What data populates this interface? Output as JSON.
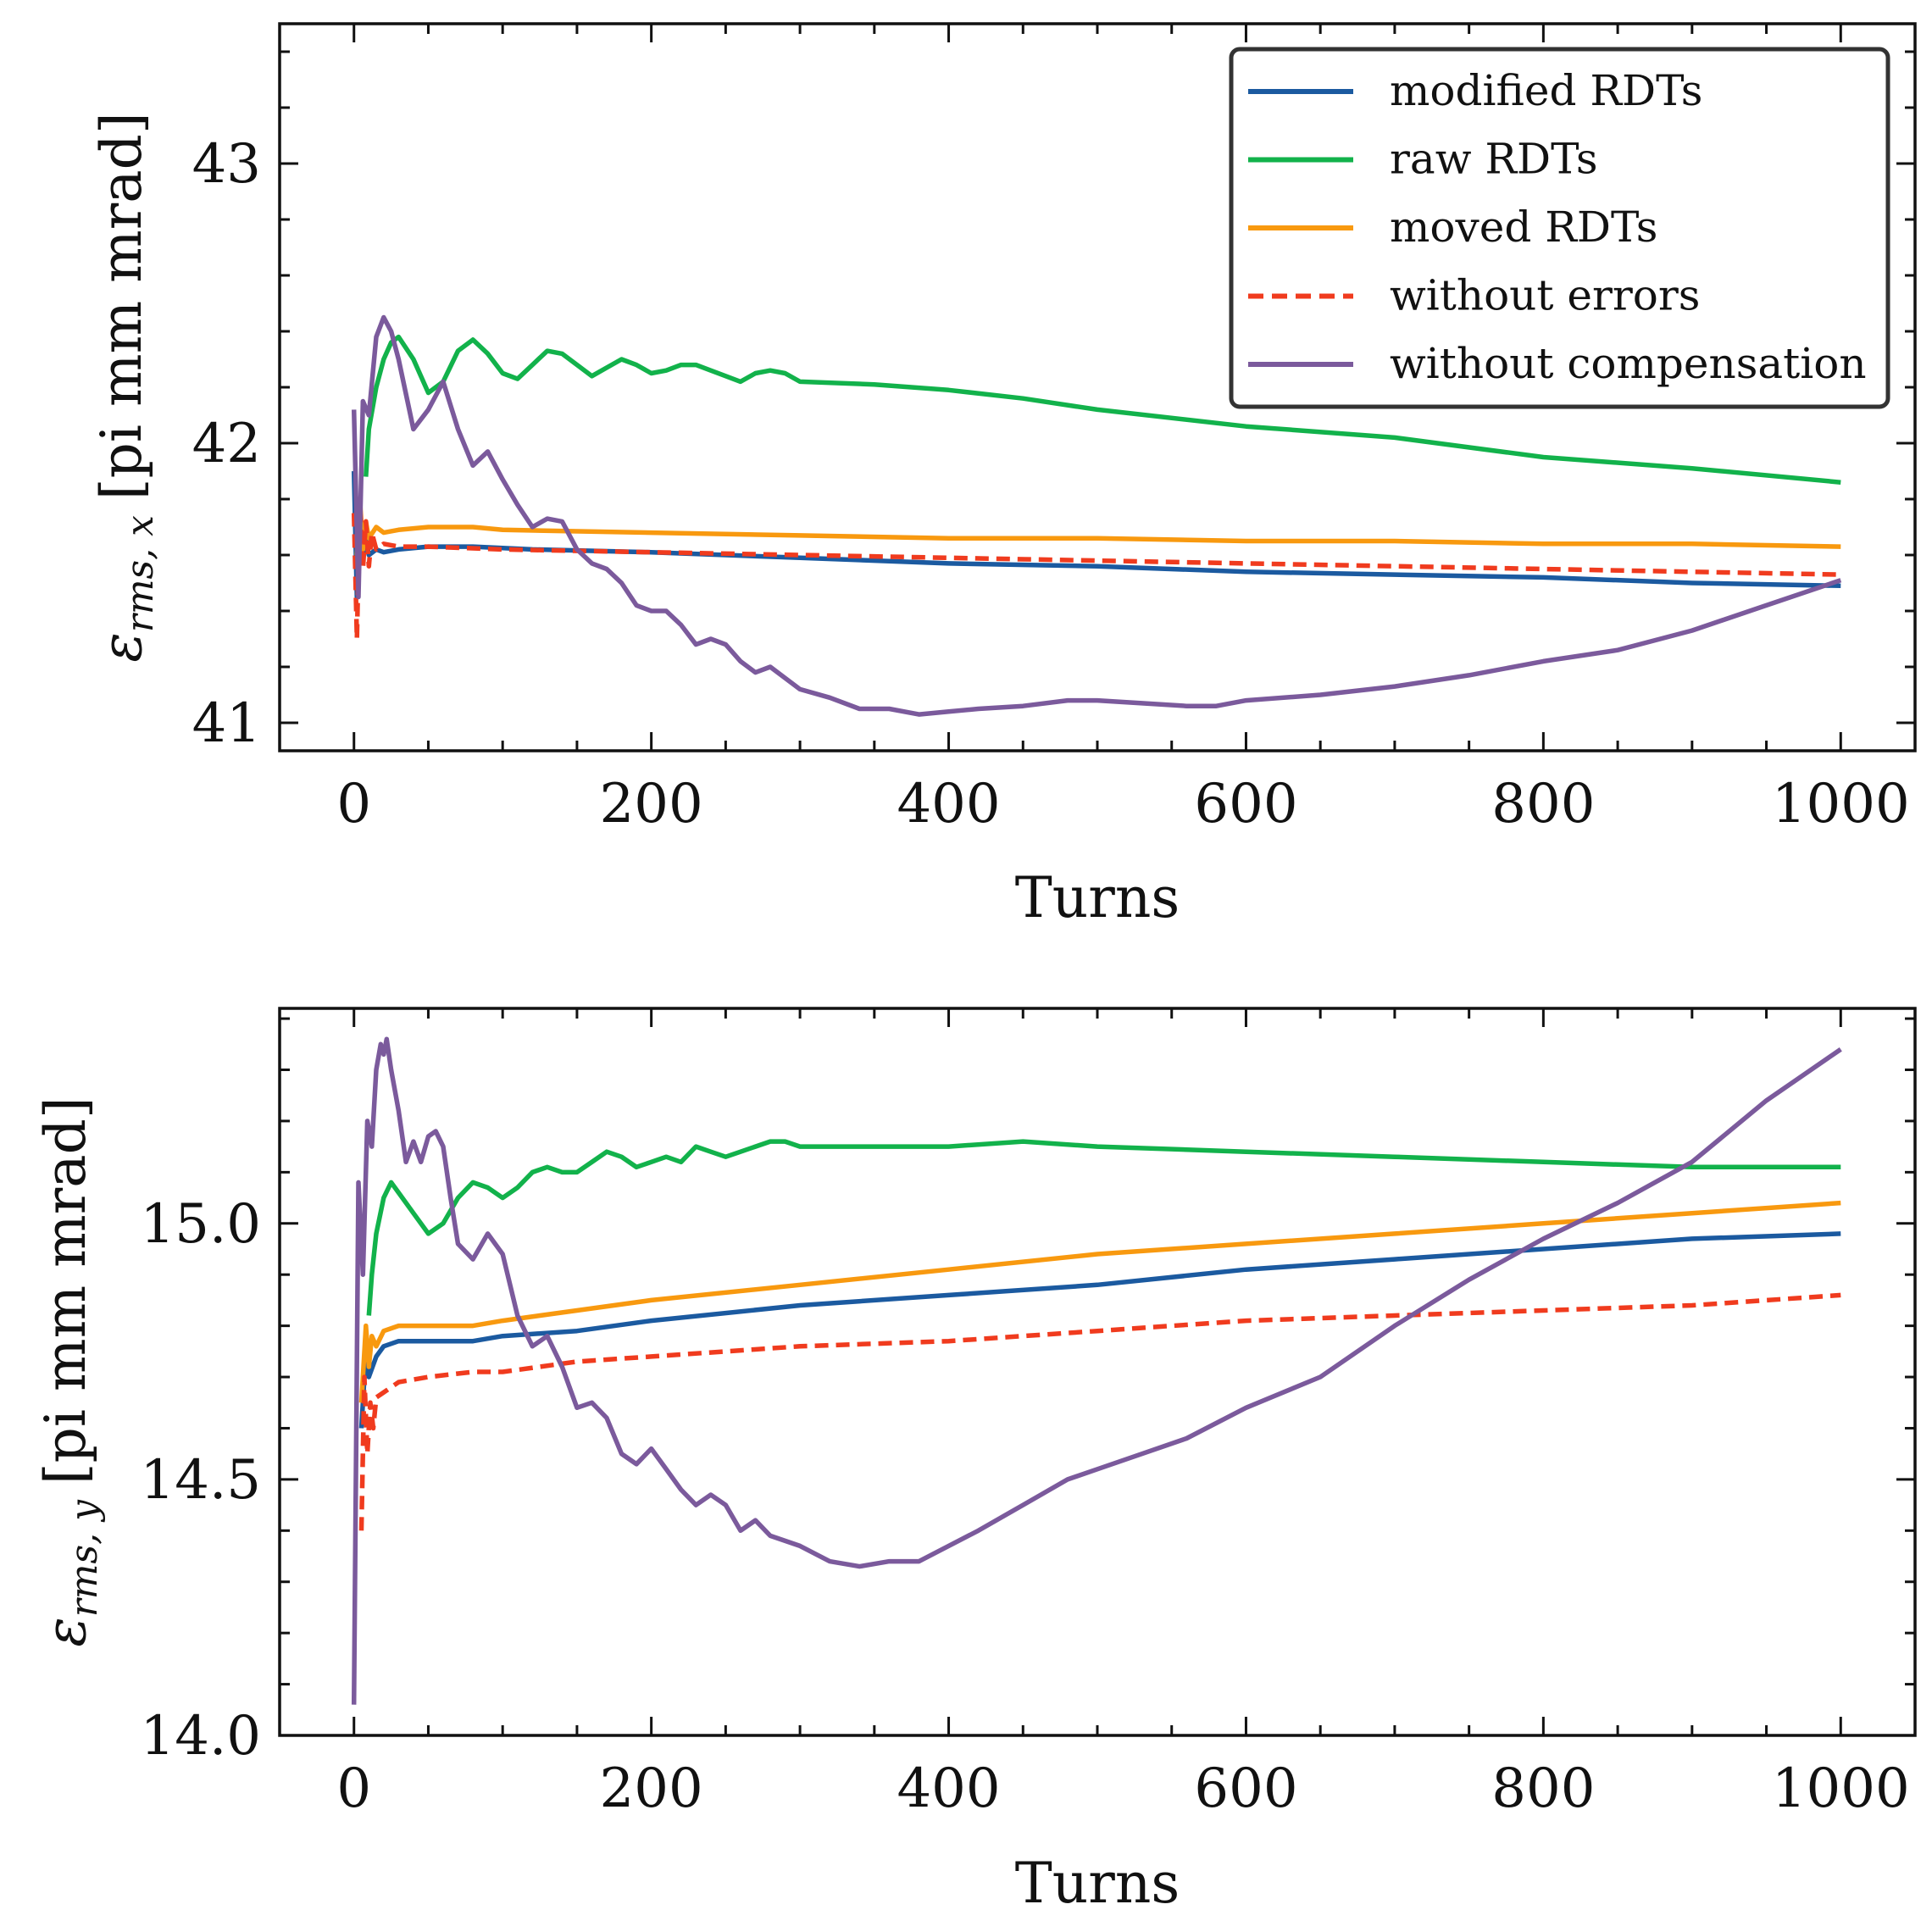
{
  "figure": {
    "description_panels": 2
  },
  "legend": {
    "entries": [
      {
        "label": "modified RDTs",
        "color": "#1b5aa0",
        "dash": "solid"
      },
      {
        "label": "raw RDTs",
        "color": "#12b24b",
        "dash": "solid"
      },
      {
        "label": "moved RDTs",
        "color": "#f8990f",
        "dash": "solid"
      },
      {
        "label": "without errors",
        "color": "#f03b1e",
        "dash": "dashed"
      },
      {
        "label": "without compensation",
        "color": "#7b5a9c",
        "dash": "solid"
      }
    ]
  },
  "chart_data": [
    {
      "type": "line",
      "title": "",
      "xlabel": "Turns",
      "ylabel": "εrms, x [pi mm mrad]",
      "ylabel_symbol": "ε",
      "ylabel_subscript": "rms, x",
      "ylabel_units": "[pi mm mrad]",
      "xlim": [
        -50,
        1050
      ],
      "ylim": [
        40.9,
        43.5
      ],
      "xticks": [
        0,
        200,
        400,
        600,
        800,
        1000
      ],
      "xtick_labels": [
        "0",
        "200",
        "400",
        "600",
        "800",
        "1000"
      ],
      "yticks": [
        41,
        42,
        43
      ],
      "ytick_labels": [
        "41",
        "42",
        "43"
      ],
      "legend_position": "top-right",
      "series": [
        {
          "name": "modified RDTs",
          "color": "#1b5aa0",
          "dash": "solid",
          "x": [
            0,
            2,
            4,
            6,
            8,
            10,
            15,
            20,
            30,
            50,
            80,
            120,
            200,
            300,
            400,
            500,
            600,
            700,
            800,
            900,
            1000
          ],
          "y": [
            41.9,
            41.45,
            41.7,
            41.58,
            41.66,
            41.6,
            41.62,
            41.61,
            41.62,
            41.63,
            41.63,
            41.62,
            41.61,
            41.59,
            41.57,
            41.56,
            41.54,
            41.53,
            41.52,
            41.5,
            41.49
          ]
        },
        {
          "name": "raw RDTs",
          "color": "#12b24b",
          "dash": "solid",
          "x": [
            8,
            10,
            15,
            20,
            25,
            30,
            40,
            50,
            60,
            70,
            80,
            90,
            100,
            110,
            120,
            130,
            140,
            150,
            160,
            170,
            180,
            190,
            200,
            210,
            220,
            230,
            240,
            250,
            260,
            270,
            280,
            290,
            300,
            350,
            400,
            450,
            500,
            600,
            700,
            800,
            900,
            1000
          ],
          "y": [
            41.88,
            42.05,
            42.2,
            42.3,
            42.36,
            42.38,
            42.3,
            42.18,
            42.22,
            42.33,
            42.37,
            42.32,
            42.25,
            42.23,
            42.28,
            42.33,
            42.32,
            42.28,
            42.24,
            42.27,
            42.3,
            42.28,
            42.25,
            42.26,
            42.28,
            42.28,
            42.26,
            42.24,
            42.22,
            42.25,
            42.26,
            42.25,
            42.22,
            42.21,
            42.19,
            42.16,
            42.12,
            42.06,
            42.02,
            41.95,
            41.91,
            41.86
          ]
        },
        {
          "name": "moved RDTs",
          "color": "#f8990f",
          "dash": "solid",
          "x": [
            2,
            4,
            6,
            8,
            10,
            15,
            20,
            30,
            50,
            80,
            100,
            200,
            300,
            400,
            500,
            600,
            700,
            800,
            900,
            1000
          ],
          "y": [
            41.6,
            41.8,
            41.62,
            41.72,
            41.66,
            41.7,
            41.68,
            41.69,
            41.7,
            41.7,
            41.69,
            41.68,
            41.67,
            41.66,
            41.66,
            41.65,
            41.65,
            41.64,
            41.64,
            41.63
          ]
        },
        {
          "name": "without errors",
          "color": "#f03b1e",
          "dash": "dashed",
          "x": [
            0,
            2,
            4,
            6,
            8,
            10,
            12,
            15,
            20,
            30,
            50,
            100,
            200,
            300,
            400,
            500,
            600,
            700,
            800,
            900,
            1000
          ],
          "y": [
            41.75,
            41.3,
            41.8,
            41.55,
            41.72,
            41.56,
            41.68,
            41.62,
            41.64,
            41.63,
            41.63,
            41.62,
            41.61,
            41.6,
            41.59,
            41.58,
            41.57,
            41.56,
            41.55,
            41.54,
            41.53
          ]
        },
        {
          "name": "without compensation",
          "color": "#7b5a9c",
          "dash": "solid",
          "x": [
            0,
            3,
            6,
            10,
            15,
            20,
            25,
            30,
            40,
            50,
            60,
            70,
            80,
            90,
            100,
            110,
            120,
            130,
            140,
            150,
            160,
            170,
            180,
            190,
            200,
            210,
            220,
            230,
            240,
            250,
            260,
            270,
            280,
            290,
            300,
            320,
            340,
            360,
            380,
            400,
            420,
            450,
            480,
            500,
            530,
            560,
            580,
            600,
            650,
            700,
            750,
            800,
            850,
            900,
            950,
            1000
          ],
          "y": [
            42.12,
            41.45,
            42.15,
            42.1,
            42.38,
            42.45,
            42.4,
            42.3,
            42.05,
            42.12,
            42.22,
            42.05,
            41.92,
            41.97,
            41.87,
            41.78,
            41.7,
            41.73,
            41.72,
            41.62,
            41.57,
            41.55,
            41.5,
            41.42,
            41.4,
            41.4,
            41.35,
            41.28,
            41.3,
            41.28,
            41.22,
            41.18,
            41.2,
            41.16,
            41.12,
            41.09,
            41.05,
            41.05,
            41.03,
            41.04,
            41.05,
            41.06,
            41.08,
            41.08,
            41.07,
            41.06,
            41.06,
            41.08,
            41.1,
            41.13,
            41.17,
            41.22,
            41.26,
            41.33,
            41.42,
            41.51
          ]
        }
      ]
    },
    {
      "type": "line",
      "title": "",
      "xlabel": "Turns",
      "ylabel": "εrms, y [pi mm mrad]",
      "ylabel_symbol": "ε",
      "ylabel_subscript": "rms, y",
      "ylabel_units": "[pi mm mrad]",
      "xlim": [
        -50,
        1050
      ],
      "ylim": [
        14.0,
        15.42
      ],
      "xticks": [
        0,
        200,
        400,
        600,
        800,
        1000
      ],
      "xtick_labels": [
        "0",
        "200",
        "400",
        "600",
        "800",
        "1000"
      ],
      "yticks": [
        14.0,
        14.5,
        15.0
      ],
      "ytick_labels": [
        "14.0",
        "14.5",
        "15.0"
      ],
      "series": [
        {
          "name": "modified RDTs",
          "color": "#1b5aa0",
          "dash": "solid",
          "x": [
            5,
            8,
            10,
            15,
            20,
            30,
            50,
            80,
            100,
            150,
            200,
            300,
            400,
            500,
            600,
            700,
            800,
            900,
            1000
          ],
          "y": [
            14.6,
            14.75,
            14.7,
            14.74,
            14.76,
            14.77,
            14.77,
            14.77,
            14.78,
            14.79,
            14.81,
            14.84,
            14.86,
            14.88,
            14.91,
            14.93,
            14.95,
            14.97,
            14.98
          ]
        },
        {
          "name": "raw RDTs",
          "color": "#12b24b",
          "dash": "solid",
          "x": [
            10,
            12,
            15,
            20,
            25,
            30,
            40,
            50,
            60,
            70,
            80,
            90,
            100,
            110,
            120,
            130,
            140,
            150,
            160,
            170,
            180,
            190,
            200,
            210,
            220,
            230,
            240,
            250,
            260,
            270,
            280,
            290,
            300,
            350,
            400,
            450,
            500,
            600,
            700,
            800,
            900,
            1000
          ],
          "y": [
            14.82,
            14.9,
            14.98,
            15.05,
            15.08,
            15.06,
            15.02,
            14.98,
            15.0,
            15.05,
            15.08,
            15.07,
            15.05,
            15.07,
            15.1,
            15.11,
            15.1,
            15.1,
            15.12,
            15.14,
            15.13,
            15.11,
            15.12,
            15.13,
            15.12,
            15.15,
            15.14,
            15.13,
            15.14,
            15.15,
            15.16,
            15.16,
            15.15,
            15.15,
            15.15,
            15.16,
            15.15,
            15.14,
            15.13,
            15.12,
            15.11,
            15.11
          ]
        },
        {
          "name": "moved RDTs",
          "color": "#f8990f",
          "dash": "solid",
          "x": [
            5,
            8,
            10,
            12,
            15,
            20,
            30,
            50,
            80,
            100,
            150,
            200,
            300,
            400,
            500,
            600,
            700,
            800,
            900,
            1000
          ],
          "y": [
            14.65,
            14.8,
            14.72,
            14.78,
            14.76,
            14.79,
            14.8,
            14.8,
            14.8,
            14.81,
            14.83,
            14.85,
            14.88,
            14.91,
            14.94,
            14.96,
            14.98,
            15.0,
            15.02,
            15.04
          ]
        },
        {
          "name": "without errors",
          "color": "#f03b1e",
          "dash": "dashed",
          "x": [
            5,
            7,
            9,
            11,
            13,
            15,
            20,
            30,
            50,
            80,
            100,
            150,
            200,
            300,
            400,
            500,
            600,
            700,
            800,
            900,
            1000
          ],
          "y": [
            14.4,
            14.7,
            14.55,
            14.65,
            14.6,
            14.66,
            14.67,
            14.69,
            14.7,
            14.71,
            14.71,
            14.73,
            14.74,
            14.76,
            14.77,
            14.79,
            14.81,
            14.82,
            14.83,
            14.84,
            14.86
          ]
        },
        {
          "name": "without compensation",
          "color": "#7b5a9c",
          "dash": "solid",
          "x": [
            0,
            3,
            6,
            9,
            12,
            15,
            18,
            20,
            22,
            25,
            30,
            35,
            40,
            45,
            50,
            55,
            60,
            65,
            70,
            80,
            90,
            100,
            110,
            120,
            130,
            140,
            150,
            160,
            170,
            180,
            190,
            200,
            210,
            220,
            230,
            240,
            250,
            260,
            270,
            280,
            300,
            320,
            340,
            360,
            380,
            400,
            420,
            450,
            480,
            500,
            530,
            560,
            600,
            650,
            700,
            750,
            800,
            850,
            900,
            950,
            1000
          ],
          "y": [
            14.06,
            15.08,
            14.9,
            15.2,
            15.15,
            15.3,
            15.35,
            15.33,
            15.36,
            15.3,
            15.22,
            15.12,
            15.16,
            15.12,
            15.17,
            15.18,
            15.15,
            15.05,
            14.96,
            14.93,
            14.98,
            14.94,
            14.82,
            14.76,
            14.78,
            14.72,
            14.64,
            14.65,
            14.62,
            14.55,
            14.53,
            14.56,
            14.52,
            14.48,
            14.45,
            14.47,
            14.45,
            14.4,
            14.42,
            14.39,
            14.37,
            14.34,
            14.33,
            14.34,
            14.34,
            14.37,
            14.4,
            14.45,
            14.5,
            14.52,
            14.55,
            14.58,
            14.64,
            14.7,
            14.8,
            14.89,
            14.97,
            15.04,
            15.12,
            15.24,
            15.34
          ]
        }
      ]
    }
  ]
}
